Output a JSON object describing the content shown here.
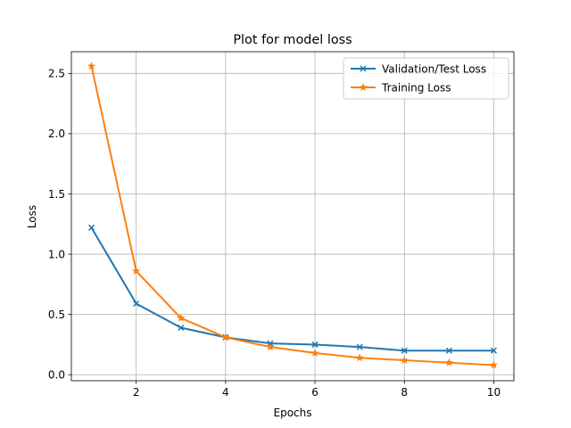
{
  "chart_data": {
    "type": "line",
    "title": "Plot for model loss",
    "xlabel": "Epochs",
    "ylabel": "Loss",
    "x": [
      1,
      2,
      3,
      4,
      5,
      6,
      7,
      8,
      9,
      10
    ],
    "xlim": [
      0.55,
      10.45
    ],
    "ylim": [
      -0.05,
      2.68
    ],
    "xticks": [
      2,
      4,
      6,
      8,
      10
    ],
    "yticks": [
      0.0,
      0.5,
      1.0,
      1.5,
      2.0,
      2.5
    ],
    "xtick_labels": [
      "2",
      "4",
      "6",
      "8",
      "10"
    ],
    "ytick_labels": [
      "0.0",
      "0.5",
      "1.0",
      "1.5",
      "2.0",
      "2.5"
    ],
    "grid": true,
    "legend_position": "upper right",
    "series": [
      {
        "name": "Validation/Test Loss",
        "marker": "x",
        "color": "#1f77b4",
        "values": [
          1.22,
          0.59,
          0.39,
          0.31,
          0.26,
          0.25,
          0.23,
          0.2,
          0.2,
          0.2
        ]
      },
      {
        "name": "Training Loss",
        "marker": "star",
        "color": "#ff7f0e",
        "values": [
          2.56,
          0.86,
          0.47,
          0.31,
          0.23,
          0.18,
          0.14,
          0.12,
          0.1,
          0.08
        ]
      }
    ]
  }
}
